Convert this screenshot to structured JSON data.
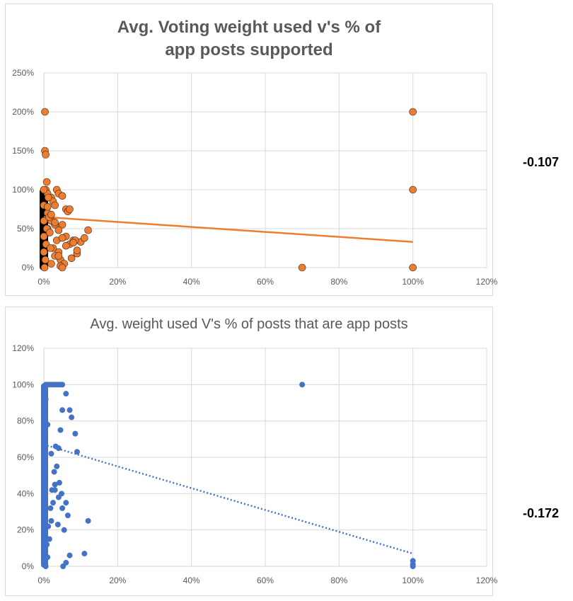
{
  "chart_data": [
    {
      "type": "scatter",
      "title": "Avg. Voting weight used v's % of app posts supported",
      "xlim": [
        0,
        1.2
      ],
      "ylim": [
        0,
        2.5
      ],
      "x_ticks": [
        "0%",
        "20%",
        "40%",
        "60%",
        "80%",
        "100%",
        "120%"
      ],
      "y_ticks": [
        "0%",
        "50%",
        "100%",
        "150%",
        "200%",
        "250%"
      ],
      "grid": true,
      "marker_color": "#ed7d31",
      "marker_outline": "#000000",
      "trendline": {
        "style": "solid",
        "color": "#ed7d31",
        "x": [
          0,
          1.0
        ],
        "y": [
          0.65,
          0.33
        ]
      },
      "series": [
        {
          "x": [
            0.003,
            0.003,
            0.005,
            0.008,
            1.0,
            1.0,
            0.7,
            1.0,
            0.005,
            0.01,
            0.02,
            0.025,
            0.03,
            0.035,
            0.04,
            0.05,
            0.06,
            0.065,
            0.07,
            0.08,
            0.09,
            0.1,
            0.12,
            0.05,
            0.06,
            0.07,
            0.04,
            0.03,
            0.02,
            0.01,
            0.015,
            0.025,
            0.045,
            0.055,
            0.075,
            0.085,
            0.0,
            0.0,
            0.0,
            0.0,
            0.0,
            0.002,
            0.004,
            0.006,
            0.008,
            0.01,
            0.012,
            0.014,
            0.016,
            0.018,
            0.02,
            0.03,
            0.035,
            0.04,
            0.045,
            0.05,
            0.06,
            0.01,
            0.02,
            0.03,
            0.04,
            0.05,
            0.08,
            0.09,
            0.11
          ],
          "y": [
            2.0,
            1.5,
            1.45,
            1.1,
            2.0,
            1.0,
            0.0,
            0.0,
            1.0,
            0.95,
            0.9,
            0.85,
            0.8,
            1.0,
            0.95,
            0.92,
            0.75,
            0.72,
            0.75,
            0.35,
            0.18,
            0.33,
            0.48,
            0.55,
            0.4,
            0.3,
            0.2,
            0.15,
            0.6,
            0.5,
            0.45,
            0.25,
            0.1,
            0.05,
            0.12,
            0.35,
            1.0,
            0.8,
            0.6,
            0.4,
            0.2,
            0.0,
            0.1,
            0.3,
            0.5,
            0.7,
            0.9,
            0.65,
            0.45,
            0.25,
            0.05,
            0.55,
            0.35,
            0.15,
            0.02,
            0.0,
            0.28,
            0.78,
            0.68,
            0.58,
            0.48,
            0.38,
            0.32,
            0.22,
            0.38
          ]
        }
      ]
    },
    {
      "type": "scatter",
      "title": "Avg. weight used  V's % of posts that are app posts",
      "xlim": [
        0,
        1.2
      ],
      "ylim": [
        0,
        1.2
      ],
      "x_ticks": [
        "0%",
        "20%",
        "40%",
        "60%",
        "80%",
        "100%",
        "120%"
      ],
      "y_ticks": [
        "0%",
        "20%",
        "40%",
        "60%",
        "80%",
        "100%",
        "120%"
      ],
      "grid": true,
      "marker_color": "#4472c4",
      "trendline": {
        "style": "dotted",
        "color": "#4472c4",
        "x": [
          0.0,
          1.0
        ],
        "y": [
          0.67,
          0.07
        ]
      },
      "series": [
        {
          "x": [
            0.7,
            1.0,
            1.0,
            1.0,
            0.005,
            0.01,
            0.015,
            0.02,
            0.025,
            0.03,
            0.035,
            0.04,
            0.045,
            0.05,
            0.06,
            0.07,
            0.075,
            0.085,
            0.09,
            0.11,
            0.12,
            0.0,
            0.0,
            0.0,
            0.0,
            0.0,
            0.0,
            0.0,
            0.0,
            0.0,
            0.0,
            0.0,
            0.005,
            0.01,
            0.015,
            0.02,
            0.025,
            0.03,
            0.035,
            0.04,
            0.045,
            0.05,
            0.055,
            0.06,
            0.065,
            0.07,
            0.005,
            0.01,
            0.02,
            0.03,
            0.04,
            0.05,
            0.06,
            0.008,
            0.012,
            0.018,
            0.022,
            0.028,
            0.032,
            0.038,
            0.042,
            0.048,
            0.052
          ],
          "y": [
            1.0,
            0.03,
            0.01,
            0.0,
            1.0,
            1.0,
            1.0,
            1.0,
            1.0,
            1.0,
            1.0,
            1.0,
            1.0,
            1.0,
            0.95,
            0.86,
            0.82,
            0.73,
            0.63,
            0.07,
            0.25,
            0.95,
            0.9,
            0.85,
            0.8,
            0.7,
            0.6,
            0.5,
            0.4,
            0.3,
            0.2,
            0.1,
            0.0,
            0.05,
            0.15,
            0.25,
            0.35,
            0.45,
            0.55,
            0.65,
            0.75,
            0.86,
            0.2,
            0.35,
            0.28,
            0.06,
            0.92,
            0.78,
            0.62,
            0.42,
            0.38,
            0.32,
            0.02,
            0.12,
            0.22,
            0.32,
            0.42,
            0.52,
            0.66,
            0.23,
            0.46,
            0.4,
            0.0
          ]
        }
      ]
    }
  ],
  "side_values": [
    "-0.107",
    "-0.172"
  ]
}
